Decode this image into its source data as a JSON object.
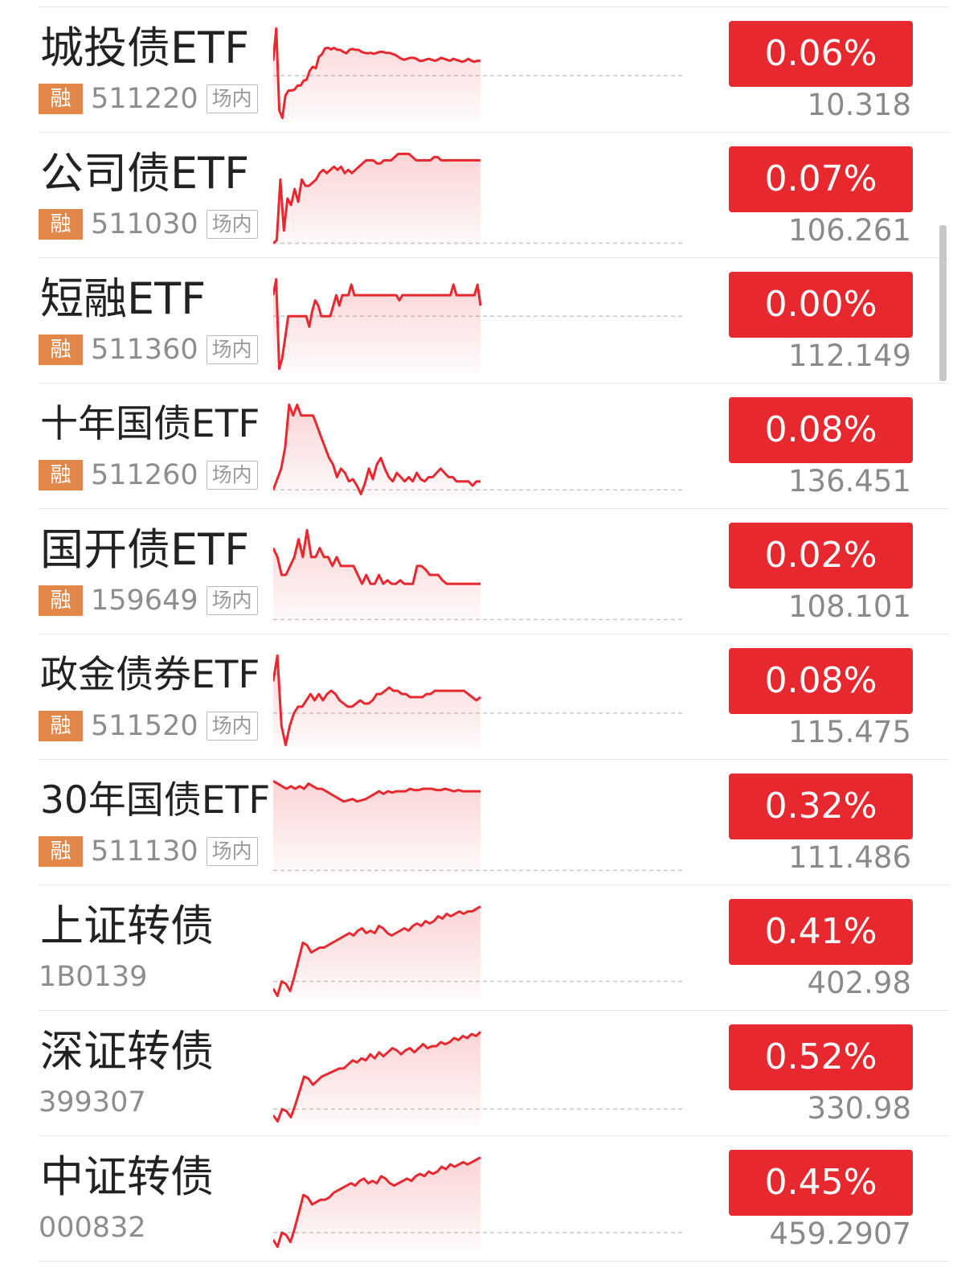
{
  "colors": {
    "up_red": "#e8282f",
    "badge_orange": "#e2874a",
    "text_main": "#222222",
    "text_sub": "#8d8d8d"
  },
  "rows": [
    {
      "name": "城投债ETF",
      "rong": "融",
      "code": "511220",
      "market": "场内",
      "change": "0.06%",
      "price": "10.318",
      "trend": [
        0.03,
        0.095,
        -0.07,
        -0.085,
        -0.04,
        -0.03,
        -0.03,
        -0.028,
        -0.02,
        -0.02,
        -0.01,
        -0.008,
        0.01,
        0.018,
        0.015,
        0.038,
        0.043,
        0.055,
        0.056,
        0.053,
        0.056,
        0.052,
        0.052,
        0.048,
        0.045,
        0.052,
        0.054,
        0.052,
        0.052,
        0.048,
        0.046,
        0.045,
        0.046,
        0.044,
        0.046,
        0.048,
        0.048,
        0.046,
        0.046,
        0.044,
        0.042,
        0.038,
        0.034,
        0.032,
        0.034,
        0.036,
        0.036,
        0.034,
        0.03,
        0.03,
        0.032,
        0.034,
        0.032,
        0.03,
        0.032,
        0.036,
        0.034,
        0.032,
        0.03,
        0.034,
        0.032,
        0.03,
        0.028,
        0.03,
        0.034,
        0.03,
        0.028,
        0.03,
        0.03
      ]
    },
    {
      "name": "公司债ETF",
      "rong": "融",
      "code": "511030",
      "market": "场内",
      "change": "0.07%",
      "price": "106.261",
      "trend": [
        0.0,
        0.005,
        0.1,
        0.02,
        0.07,
        0.06,
        0.085,
        0.065,
        0.1,
        0.09,
        0.09,
        0.095,
        0.1,
        0.11,
        0.115,
        0.11,
        0.115,
        0.12,
        0.115,
        0.12,
        0.11,
        0.115,
        0.11,
        0.115,
        0.12,
        0.125,
        0.13,
        0.13,
        0.13,
        0.125,
        0.125,
        0.13,
        0.13,
        0.13,
        0.135,
        0.14,
        0.14,
        0.14,
        0.14,
        0.135,
        0.13,
        0.13,
        0.13,
        0.13,
        0.13,
        0.135,
        0.135,
        0.13,
        0.13,
        0.13,
        0.13,
        0.13,
        0.13,
        0.13,
        0.13,
        0.13,
        0.13,
        0.13,
        0.13
      ]
    },
    {
      "name": "短融ETF",
      "rong": "融",
      "code": "511360",
      "market": "场内",
      "change": "0.00%",
      "price": "112.149",
      "trend": [
        0.02,
        0.035,
        -0.05,
        -0.04,
        -0.02,
        0.0,
        0.0,
        0.0,
        0.0,
        0.0,
        0.0,
        0.0,
        -0.01,
        0.005,
        0.015,
        0.01,
        0.0,
        0.0,
        0.0,
        0.0,
        0.01,
        0.02,
        0.01,
        0.02,
        0.02,
        0.02,
        0.03,
        0.02,
        0.02,
        0.02,
        0.02,
        0.02,
        0.02,
        0.02,
        0.02,
        0.02,
        0.02,
        0.02,
        0.02,
        0.02,
        0.02,
        0.02,
        0.015,
        0.02,
        0.02,
        0.02,
        0.02,
        0.02,
        0.02,
        0.02,
        0.02,
        0.02,
        0.02,
        0.02,
        0.02,
        0.02,
        0.02,
        0.02,
        0.02,
        0.02,
        0.03,
        0.02,
        0.02,
        0.02,
        0.02,
        0.02,
        0.02,
        0.02,
        0.03,
        0.01
      ]
    },
    {
      "name": "十年国债ETF",
      "rong": "融",
      "code": "511260",
      "market": "场内",
      "change": "0.08%",
      "price": "136.451",
      "trend": [
        0.0,
        0.005,
        0.01,
        0.02,
        0.04,
        0.035,
        0.04,
        0.035,
        0.035,
        0.035,
        0.035,
        0.03,
        0.025,
        0.02,
        0.015,
        0.012,
        0.006,
        0.01,
        0.008,
        0.004,
        0.005,
        0.002,
        -0.002,
        0.003,
        0.01,
        0.005,
        0.012,
        0.015,
        0.01,
        0.006,
        0.004,
        0.008,
        0.006,
        0.004,
        0.006,
        0.004,
        0.008,
        0.005,
        0.004,
        0.006,
        0.006,
        0.008,
        0.01,
        0.008,
        0.006,
        0.006,
        0.004,
        0.004,
        0.004,
        0.004,
        0.002,
        0.004,
        0.004
      ]
    },
    {
      "name": "国开债ETF",
      "rong": "融",
      "code": "159649",
      "market": "场内",
      "change": "0.02%",
      "price": "108.101",
      "trend": [
        0.04,
        0.035,
        0.025,
        0.025,
        0.03,
        0.035,
        0.045,
        0.035,
        0.05,
        0.035,
        0.035,
        0.04,
        0.035,
        0.035,
        0.03,
        0.035,
        0.03,
        0.03,
        0.03,
        0.03,
        0.025,
        0.02,
        0.025,
        0.02,
        0.02,
        0.025,
        0.02,
        0.022,
        0.02,
        0.02,
        0.022,
        0.02,
        0.02,
        0.02,
        0.03,
        0.03,
        0.028,
        0.025,
        0.025,
        0.025,
        0.022,
        0.02,
        0.02,
        0.02,
        0.02,
        0.02,
        0.02,
        0.02,
        0.02,
        0.02
      ]
    },
    {
      "name": "政金债券ETF",
      "rong": "融",
      "code": "511520",
      "market": "场内",
      "change": "0.08%",
      "price": "115.475",
      "trend": [
        0.05,
        0.09,
        -0.02,
        -0.05,
        -0.02,
        0.0,
        0.01,
        0.01,
        0.02,
        0.03,
        0.02,
        0.03,
        0.02,
        0.03,
        0.035,
        0.03,
        0.02,
        0.015,
        0.01,
        0.01,
        0.015,
        0.02,
        0.015,
        0.015,
        0.02,
        0.03,
        0.03,
        0.035,
        0.04,
        0.035,
        0.035,
        0.03,
        0.03,
        0.025,
        0.025,
        0.025,
        0.025,
        0.03,
        0.03,
        0.035,
        0.035,
        0.035,
        0.035,
        0.035,
        0.035,
        0.035,
        0.035,
        0.03,
        0.025,
        0.02,
        0.025
      ]
    },
    {
      "name": "30年国债ETF",
      "rong": "融",
      "code": "511130",
      "market": "场内",
      "change": "0.32%",
      "price": "111.486",
      "trend": [
        0.35,
        0.34,
        0.33,
        0.32,
        0.33,
        0.32,
        0.33,
        0.32,
        0.34,
        0.33,
        0.32,
        0.32,
        0.31,
        0.3,
        0.29,
        0.28,
        0.27,
        0.275,
        0.28,
        0.27,
        0.275,
        0.28,
        0.29,
        0.3,
        0.31,
        0.3,
        0.31,
        0.305,
        0.31,
        0.31,
        0.31,
        0.32,
        0.315,
        0.315,
        0.32,
        0.32,
        0.32,
        0.315,
        0.315,
        0.32,
        0.315,
        0.31,
        0.315,
        0.31,
        0.31,
        0.31,
        0.31,
        0.31
      ]
    },
    {
      "name": "上证转债",
      "rong": "",
      "code": "1B0139",
      "market": "",
      "change": "0.41%",
      "price": "402.98",
      "trend": [
        -0.03,
        -0.06,
        0.0,
        -0.01,
        -0.04,
        0.02,
        0.09,
        0.16,
        0.15,
        0.12,
        0.13,
        0.14,
        0.14,
        0.15,
        0.16,
        0.17,
        0.18,
        0.19,
        0.2,
        0.19,
        0.21,
        0.22,
        0.2,
        0.21,
        0.2,
        0.23,
        0.22,
        0.2,
        0.19,
        0.2,
        0.21,
        0.22,
        0.21,
        0.23,
        0.24,
        0.23,
        0.25,
        0.24,
        0.25,
        0.27,
        0.26,
        0.28,
        0.27,
        0.28,
        0.29,
        0.28,
        0.29,
        0.29,
        0.3,
        0.31
      ]
    },
    {
      "name": "深证转债",
      "rong": "",
      "code": "399307",
      "market": "",
      "change": "0.52%",
      "price": "330.98",
      "trend": [
        -0.03,
        -0.06,
        0.0,
        -0.01,
        -0.04,
        0.02,
        0.09,
        0.16,
        0.15,
        0.12,
        0.14,
        0.16,
        0.17,
        0.18,
        0.19,
        0.2,
        0.2,
        0.22,
        0.24,
        0.23,
        0.25,
        0.24,
        0.27,
        0.25,
        0.28,
        0.26,
        0.28,
        0.3,
        0.29,
        0.27,
        0.29,
        0.3,
        0.28,
        0.3,
        0.32,
        0.3,
        0.31,
        0.31,
        0.33,
        0.32,
        0.33,
        0.35,
        0.34,
        0.36,
        0.35,
        0.37,
        0.36,
        0.38
      ]
    },
    {
      "name": "中证转债",
      "rong": "",
      "code": "000832",
      "market": "",
      "change": "0.45%",
      "price": "459.2907",
      "trend": [
        -0.03,
        -0.06,
        0.0,
        -0.01,
        -0.04,
        0.02,
        0.09,
        0.16,
        0.15,
        0.12,
        0.13,
        0.14,
        0.14,
        0.15,
        0.17,
        0.18,
        0.19,
        0.2,
        0.21,
        0.2,
        0.22,
        0.23,
        0.21,
        0.22,
        0.21,
        0.24,
        0.23,
        0.21,
        0.2,
        0.21,
        0.22,
        0.23,
        0.22,
        0.24,
        0.25,
        0.24,
        0.26,
        0.25,
        0.26,
        0.28,
        0.27,
        0.29,
        0.28,
        0.29,
        0.3,
        0.29,
        0.3,
        0.31,
        0.32
      ]
    }
  ]
}
